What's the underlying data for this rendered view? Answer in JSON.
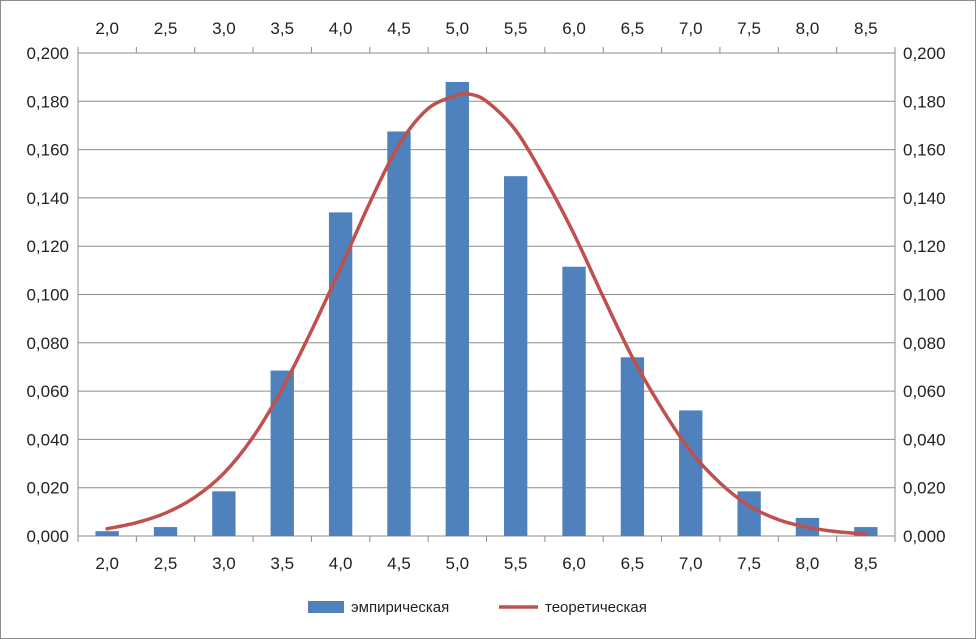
{
  "chart_data": {
    "type": "bar",
    "categories": [
      "2,0",
      "2,5",
      "3,0",
      "3,5",
      "4,0",
      "4,5",
      "5,0",
      "5,5",
      "6,0",
      "6,5",
      "7,0",
      "7,5",
      "8,0",
      "8,5"
    ],
    "x_values": [
      2.0,
      2.5,
      3.0,
      3.5,
      4.0,
      4.5,
      5.0,
      5.5,
      6.0,
      6.5,
      7.0,
      7.5,
      8.0,
      8.5
    ],
    "series": [
      {
        "name": "эмпирическая",
        "type": "bar",
        "color": "#4f81bd",
        "values": [
          0.002,
          0.0037,
          0.0185,
          0.0685,
          0.134,
          0.1675,
          0.188,
          0.149,
          0.1115,
          0.074,
          0.052,
          0.0185,
          0.0075,
          0.0037
        ]
      },
      {
        "name": "теоретическая",
        "type": "smooth-line",
        "color": "#c0504d",
        "x": [
          2.0,
          2.25,
          2.5,
          2.75,
          3.0,
          3.25,
          3.5,
          3.75,
          4.0,
          4.25,
          4.5,
          4.75,
          5.0,
          5.1,
          5.25,
          5.5,
          5.75,
          6.0,
          6.25,
          6.5,
          6.75,
          7.0,
          7.25,
          7.5,
          7.75,
          8.0,
          8.25,
          8.5
        ],
        "values": [
          0.003,
          0.0055,
          0.0095,
          0.016,
          0.026,
          0.041,
          0.061,
          0.085,
          0.111,
          0.138,
          0.162,
          0.177,
          0.1825,
          0.183,
          0.18,
          0.168,
          0.148,
          0.125,
          0.099,
          0.074,
          0.053,
          0.035,
          0.022,
          0.0125,
          0.0068,
          0.0036,
          0.0018,
          0.0008
        ]
      }
    ],
    "y_ticks": [
      "0,000",
      "0,020",
      "0,040",
      "0,060",
      "0,080",
      "0,100",
      "0,120",
      "0,140",
      "0,160",
      "0,180",
      "0,200"
    ],
    "ylim": [
      0,
      0.2
    ],
    "grid": true,
    "legend_position": "bottom"
  }
}
